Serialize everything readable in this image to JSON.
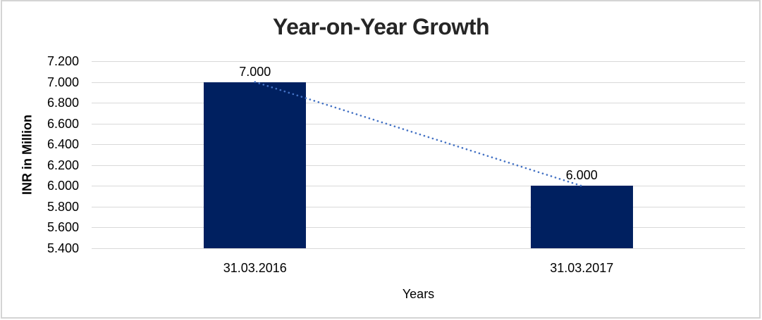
{
  "page": {
    "background": "#ffffff",
    "frame_border_color": "#d4d4d4"
  },
  "chart_data": {
    "type": "bar",
    "title": "Year-on-Year Growth",
    "xlabel": "Years",
    "ylabel": "INR in Million",
    "categories": [
      "31.03.2016",
      "31.03.2017"
    ],
    "values": [
      7.0,
      6.0
    ],
    "data_labels": [
      "7.000",
      "6.000"
    ],
    "trendline": {
      "type": "line",
      "style": "dotted",
      "points": [
        7.0,
        6.0
      ],
      "color": "#4472C4"
    },
    "ylim": [
      5.4,
      7.2
    ],
    "ytick_step": 0.2,
    "ytick_labels": [
      "5.400",
      "5.600",
      "5.800",
      "6.000",
      "6.200",
      "6.400",
      "6.600",
      "6.800",
      "7.000",
      "7.200"
    ],
    "grid": true,
    "legend": "none",
    "colors": {
      "bar": "#002060",
      "gridline": "#d9d9d9",
      "title": "#262626",
      "text": "#000000"
    }
  }
}
